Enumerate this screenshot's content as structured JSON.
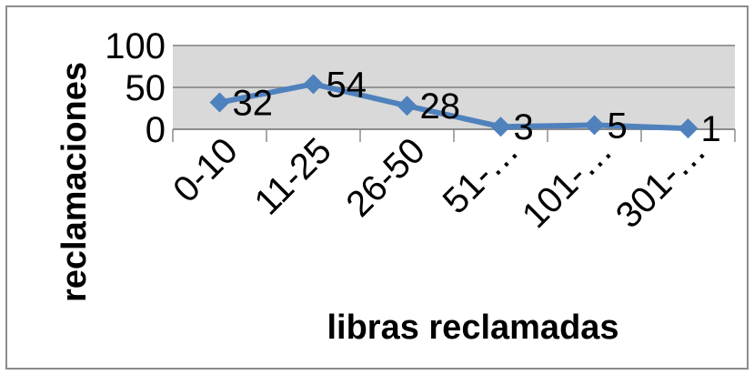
{
  "chart_data": {
    "type": "line",
    "categories": [
      "0-10",
      "11-25",
      "26-50",
      "51-…",
      "101-…",
      "301-…"
    ],
    "series": [
      {
        "values": [
          32,
          54,
          28,
          3,
          5,
          1
        ],
        "color": "#4f81bd"
      }
    ],
    "data_labels": [
      "32",
      "54",
      "28",
      "3",
      "5",
      "1"
    ],
    "xlabel": "libras reclamadas",
    "ylabel": "reclamaciones",
    "ylim": [
      0,
      100
    ],
    "yticks": [
      "0",
      "50",
      "100"
    ],
    "grid": true,
    "marker": "diamond",
    "plot_background": "#d9d9d9",
    "gridline_color": "#7f7f7f",
    "legend": "none"
  }
}
